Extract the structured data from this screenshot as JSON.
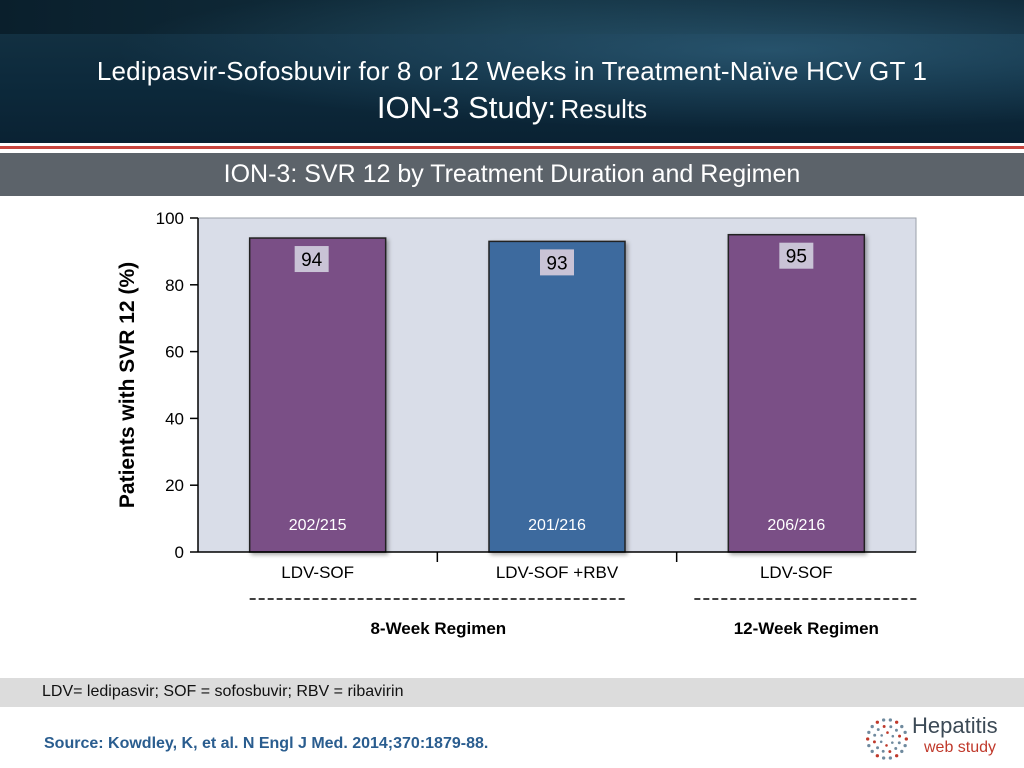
{
  "header": {
    "title_line1": "Ledipasvir-Sofosbuvir for 8 or 12 Weeks in Treatment-Naïve HCV GT 1",
    "title_line2_big": "ION-3 Study:",
    "title_line2_small": "Results"
  },
  "subtitle": "ION-3: SVR 12 by Treatment Duration and Regimen",
  "chart_data": {
    "type": "bar",
    "title": "",
    "ylabel": "Patients with SVR 12 (%)",
    "xlabel": "",
    "ylim": [
      0,
      100
    ],
    "yticks": [
      0,
      20,
      40,
      60,
      80,
      100
    ],
    "grid": false,
    "categories": [
      "LDV-SOF",
      "LDV-SOF +RBV",
      "LDV-SOF"
    ],
    "values": [
      94,
      93,
      95
    ],
    "value_labels": [
      "94",
      "93",
      "95"
    ],
    "counts": [
      "202/215",
      "201/216",
      "206/216"
    ],
    "colors": [
      "#7a4f86",
      "#3c6a9e",
      "#7a4f86"
    ],
    "plot_background": "#d9dde8",
    "groups": [
      {
        "label": "8-Week Regimen",
        "categories": [
          0,
          1
        ]
      },
      {
        "label": "12-Week Regimen",
        "categories": [
          2
        ]
      }
    ]
  },
  "footnote": "LDV= ledipasvir; SOF = sofosbuvir; RBV = ribavirin",
  "source": "Source: Kowdley, K, et al. N Engl J Med. 2014;370:1879-88.",
  "logo": {
    "word1": "Hepatitis",
    "word2": "web study",
    "icon": "dotted-circle-logo-icon"
  },
  "colors": {
    "header_bg": "#0d2a3c",
    "accent_red": "#c8453f",
    "subtitle_band": "#5c636a",
    "source_text": "#2a5d8f"
  }
}
